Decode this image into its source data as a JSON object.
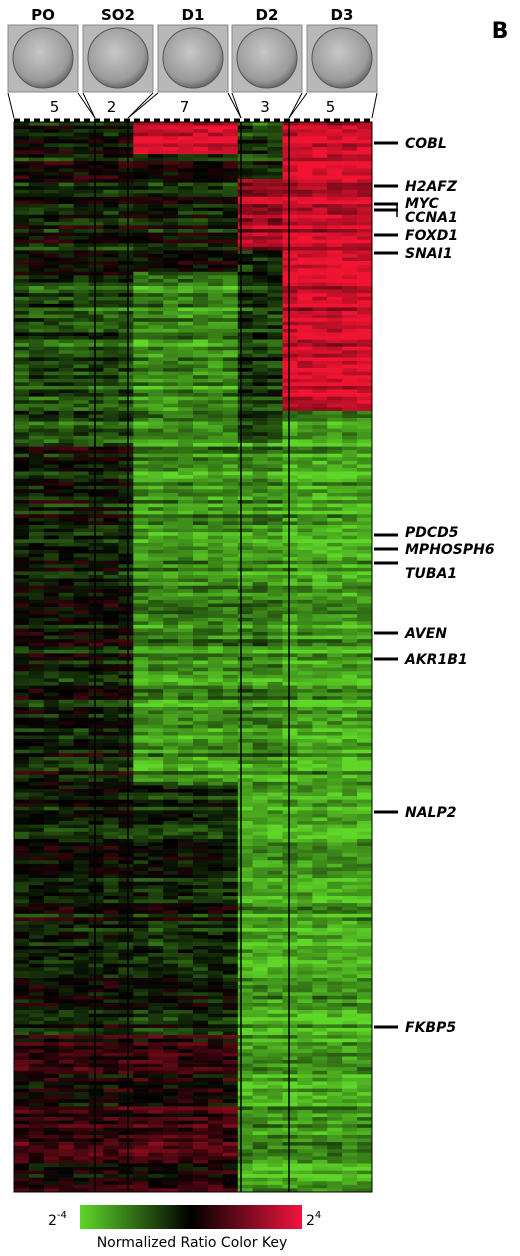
{
  "panel_label": "B",
  "stages": [
    {
      "label": "PO",
      "count": 5
    },
    {
      "label": "SO2",
      "count": 2
    },
    {
      "label": "D1",
      "count": 7
    },
    {
      "label": "D2",
      "count": 3
    },
    {
      "label": "D3",
      "count": 5
    }
  ],
  "genes": [
    "COBL",
    "H2AFZ",
    "MYC",
    "CCNA1",
    "FOXD1",
    "SNAI1",
    "PDCD5",
    "MPHOSPH6",
    "TUBA1",
    "AVEN",
    "AKR1B1",
    "NALP2",
    "FKBP5"
  ],
  "color_key": {
    "min": {
      "base": 2,
      "exponent": -4
    },
    "max": {
      "base": 2,
      "exponent": 4
    },
    "title": "Normalized Ratio Color Key"
  }
}
